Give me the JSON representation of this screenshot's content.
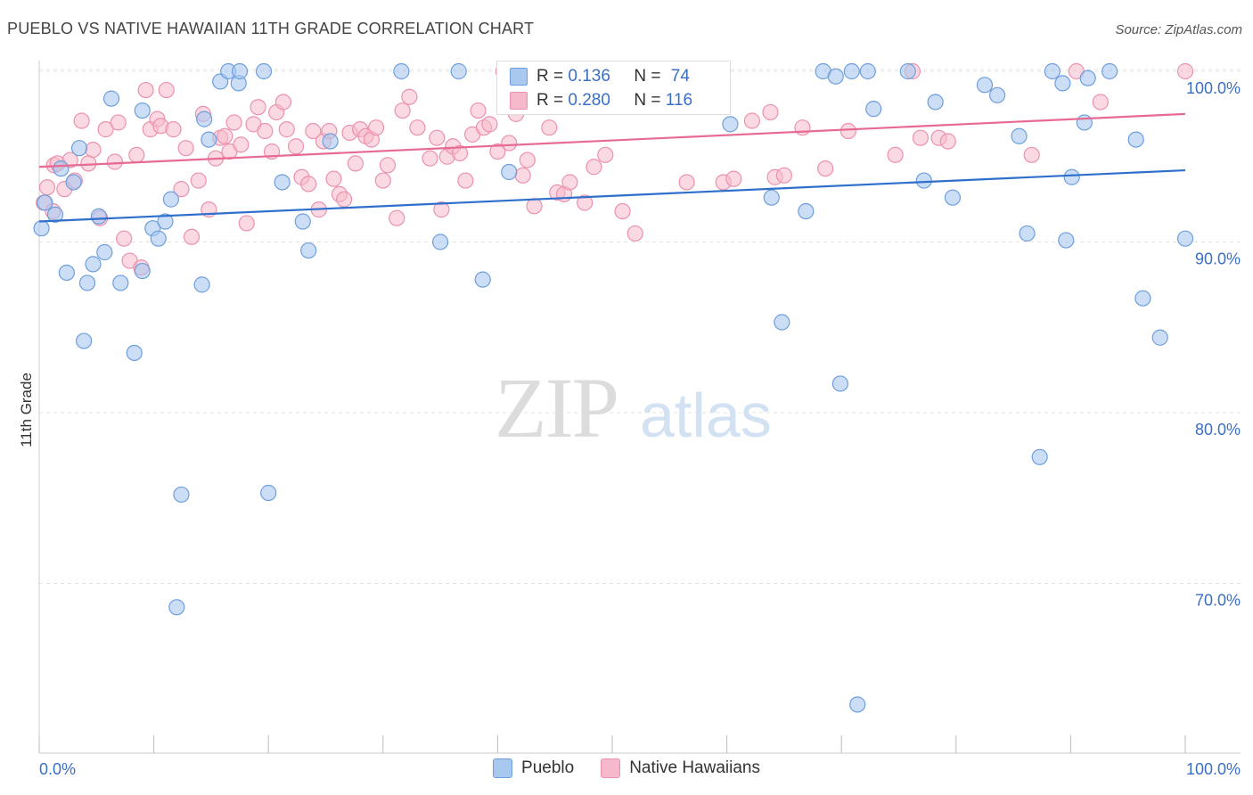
{
  "title": "PUEBLO VS NATIVE HAWAIIAN 11TH GRADE CORRELATION CHART",
  "source": "Source: ZipAtlas.com",
  "watermark": {
    "zip": "ZIP",
    "atlas": "atlas"
  },
  "legend_top": [
    {
      "r_label": "R =",
      "r_value": "0.136",
      "n_label": "N =",
      "n_value": "74"
    },
    {
      "r_label": "R =",
      "r_value": "0.280",
      "n_label": "N =",
      "n_value": "116"
    }
  ],
  "legend_bottom": [
    "Pueblo",
    "Native Hawaiians"
  ],
  "colors": {
    "pueblo_fill": "#a9c8f0",
    "pueblo_stroke": "#6e9fdc",
    "pueblo_line": "#2f6fcc",
    "hawaiian_fill": "#f6b9cb",
    "hawaiian_stroke": "#eb92ae",
    "hawaiian_line": "#e76a93",
    "tick_label": "#3a6fc4",
    "grid": "#e4e4e4"
  },
  "chart_data": {
    "type": "scatter",
    "title": "PUEBLO VS NATIVE HAWAIIAN 11TH GRADE CORRELATION CHART",
    "xlabel": "",
    "ylabel": "11th Grade",
    "xlim": [
      0,
      100
    ],
    "ylim": [
      60.5,
      102
    ],
    "x_tick_labels": [
      "0.0%",
      "100.0%"
    ],
    "y_ticks": [
      70,
      80,
      90,
      100
    ],
    "y_tick_labels": [
      "70.0%",
      "80.0%",
      "90.0%",
      "100.0%"
    ],
    "grid": "horizontal dashed",
    "legend_position": "top-center",
    "series": [
      {
        "name": "Pueblo",
        "R": 0.136,
        "N": 74,
        "trend": {
          "x": [
            0,
            100
          ],
          "y": [
            91.2,
            94.2
          ]
        },
        "points": [
          [
            0.2,
            90.8
          ],
          [
            0.5,
            92.3
          ],
          [
            1.4,
            91.6
          ],
          [
            1.9,
            94.3
          ],
          [
            2.4,
            88.2
          ],
          [
            3.0,
            93.5
          ],
          [
            3.5,
            95.5
          ],
          [
            3.9,
            84.2
          ],
          [
            4.2,
            87.6
          ],
          [
            4.7,
            88.7
          ],
          [
            5.2,
            91.5
          ],
          [
            5.7,
            89.4
          ],
          [
            6.3,
            98.4
          ],
          [
            7.1,
            87.6
          ],
          [
            8.3,
            83.5
          ],
          [
            9.0,
            97.7
          ],
          [
            9.0,
            88.3
          ],
          [
            9.9,
            90.8
          ],
          [
            10.4,
            90.2
          ],
          [
            11.0,
            91.2
          ],
          [
            11.5,
            92.5
          ],
          [
            12.0,
            68.6
          ],
          [
            12.4,
            75.2
          ],
          [
            14.2,
            87.5
          ],
          [
            14.4,
            97.2
          ],
          [
            14.8,
            96.0
          ],
          [
            15.8,
            99.4
          ],
          [
            16.5,
            100.0
          ],
          [
            17.4,
            99.3
          ],
          [
            17.5,
            100.0
          ],
          [
            19.6,
            100.0
          ],
          [
            20.0,
            75.3
          ],
          [
            21.2,
            93.5
          ],
          [
            23.0,
            91.2
          ],
          [
            23.5,
            89.5
          ],
          [
            25.4,
            95.9
          ],
          [
            31.6,
            100.0
          ],
          [
            35.0,
            90.0
          ],
          [
            36.6,
            100.0
          ],
          [
            38.7,
            87.8
          ],
          [
            41.0,
            94.1
          ],
          [
            42.9,
            100.0
          ],
          [
            45.7,
            100.0
          ],
          [
            48.0,
            100.0
          ],
          [
            60.3,
            96.9
          ],
          [
            63.9,
            92.6
          ],
          [
            64.8,
            85.3
          ],
          [
            66.9,
            91.8
          ],
          [
            68.4,
            100.0
          ],
          [
            69.5,
            99.7
          ],
          [
            69.9,
            81.7
          ],
          [
            70.9,
            100.0
          ],
          [
            71.4,
            62.9
          ],
          [
            72.3,
            100.0
          ],
          [
            72.8,
            97.8
          ],
          [
            75.8,
            100.0
          ],
          [
            77.2,
            93.6
          ],
          [
            78.2,
            98.2
          ],
          [
            79.7,
            92.6
          ],
          [
            82.5,
            99.2
          ],
          [
            83.6,
            98.6
          ],
          [
            85.5,
            96.2
          ],
          [
            86.2,
            90.5
          ],
          [
            87.3,
            77.4
          ],
          [
            88.4,
            100.0
          ],
          [
            89.3,
            99.3
          ],
          [
            89.6,
            90.1
          ],
          [
            90.1,
            93.8
          ],
          [
            91.2,
            97.0
          ],
          [
            91.5,
            99.6
          ],
          [
            93.4,
            100.0
          ],
          [
            95.7,
            96.0
          ],
          [
            96.3,
            86.7
          ],
          [
            97.8,
            84.4
          ],
          [
            100.0,
            90.2
          ]
        ]
      },
      {
        "name": "Native Hawaiians",
        "R": 0.28,
        "N": 116,
        "trend": {
          "x": [
            0,
            100
          ],
          "y": [
            94.4,
            97.5
          ]
        },
        "points": [
          [
            0.4,
            92.3
          ],
          [
            0.7,
            93.2
          ],
          [
            1.2,
            91.8
          ],
          [
            1.3,
            94.5
          ],
          [
            1.6,
            94.6
          ],
          [
            2.2,
            93.1
          ],
          [
            2.7,
            94.8
          ],
          [
            3.1,
            93.6
          ],
          [
            3.7,
            97.1
          ],
          [
            4.3,
            94.6
          ],
          [
            4.7,
            95.4
          ],
          [
            5.3,
            91.4
          ],
          [
            5.8,
            96.6
          ],
          [
            6.6,
            94.7
          ],
          [
            6.9,
            97.0
          ],
          [
            7.4,
            90.2
          ],
          [
            7.9,
            88.9
          ],
          [
            8.5,
            95.1
          ],
          [
            8.9,
            88.5
          ],
          [
            9.3,
            98.9
          ],
          [
            9.7,
            96.6
          ],
          [
            10.3,
            97.2
          ],
          [
            10.6,
            96.8
          ],
          [
            11.1,
            98.9
          ],
          [
            11.7,
            96.6
          ],
          [
            12.4,
            93.1
          ],
          [
            12.8,
            95.5
          ],
          [
            13.3,
            90.3
          ],
          [
            13.9,
            93.6
          ],
          [
            14.3,
            97.5
          ],
          [
            14.8,
            91.9
          ],
          [
            15.4,
            94.9
          ],
          [
            15.8,
            96.1
          ],
          [
            16.2,
            96.2
          ],
          [
            16.6,
            95.3
          ],
          [
            17.0,
            97.0
          ],
          [
            17.6,
            95.7
          ],
          [
            18.1,
            91.1
          ],
          [
            18.7,
            96.9
          ],
          [
            19.1,
            97.9
          ],
          [
            19.7,
            96.5
          ],
          [
            20.3,
            95.3
          ],
          [
            20.7,
            97.6
          ],
          [
            21.3,
            98.2
          ],
          [
            21.6,
            96.6
          ],
          [
            22.4,
            95.6
          ],
          [
            22.9,
            93.8
          ],
          [
            23.5,
            93.4
          ],
          [
            23.9,
            96.5
          ],
          [
            24.4,
            91.9
          ],
          [
            24.8,
            95.9
          ],
          [
            25.3,
            96.5
          ],
          [
            25.7,
            93.7
          ],
          [
            26.2,
            92.8
          ],
          [
            26.6,
            92.5
          ],
          [
            27.1,
            96.4
          ],
          [
            27.6,
            94.6
          ],
          [
            28.0,
            96.6
          ],
          [
            28.5,
            96.2
          ],
          [
            29.0,
            96.0
          ],
          [
            29.4,
            96.7
          ],
          [
            30.0,
            93.6
          ],
          [
            30.4,
            94.5
          ],
          [
            31.2,
            91.4
          ],
          [
            31.7,
            97.7
          ],
          [
            32.3,
            98.5
          ],
          [
            33.0,
            96.7
          ],
          [
            34.1,
            94.9
          ],
          [
            34.7,
            96.1
          ],
          [
            35.1,
            91.9
          ],
          [
            35.6,
            95.0
          ],
          [
            36.1,
            95.6
          ],
          [
            36.7,
            95.2
          ],
          [
            37.2,
            93.6
          ],
          [
            37.8,
            96.3
          ],
          [
            38.3,
            97.7
          ],
          [
            38.8,
            96.7
          ],
          [
            39.3,
            96.9
          ],
          [
            40.0,
            95.3
          ],
          [
            40.5,
            100.0
          ],
          [
            41.0,
            95.8
          ],
          [
            41.6,
            97.5
          ],
          [
            42.2,
            93.9
          ],
          [
            42.6,
            94.8
          ],
          [
            43.2,
            92.1
          ],
          [
            44.0,
            100.0
          ],
          [
            44.5,
            96.7
          ],
          [
            45.2,
            92.9
          ],
          [
            45.8,
            92.8
          ],
          [
            46.3,
            93.5
          ],
          [
            47.6,
            92.3
          ],
          [
            48.4,
            94.4
          ],
          [
            49.4,
            95.1
          ],
          [
            50.4,
            100.0
          ],
          [
            50.9,
            91.8
          ],
          [
            52.0,
            90.5
          ],
          [
            56.5,
            93.5
          ],
          [
            58.2,
            100.0
          ],
          [
            59.7,
            93.5
          ],
          [
            60.6,
            93.7
          ],
          [
            62.2,
            97.1
          ],
          [
            63.8,
            97.6
          ],
          [
            64.2,
            93.8
          ],
          [
            65.0,
            93.9
          ],
          [
            66.6,
            96.7
          ],
          [
            68.6,
            94.3
          ],
          [
            70.6,
            96.5
          ],
          [
            74.7,
            95.1
          ],
          [
            76.2,
            100.0
          ],
          [
            76.9,
            96.1
          ],
          [
            78.5,
            96.1
          ],
          [
            79.3,
            95.9
          ],
          [
            86.6,
            95.1
          ],
          [
            90.5,
            100.0
          ],
          [
            92.6,
            98.2
          ],
          [
            100.0,
            100.0
          ]
        ]
      }
    ]
  }
}
